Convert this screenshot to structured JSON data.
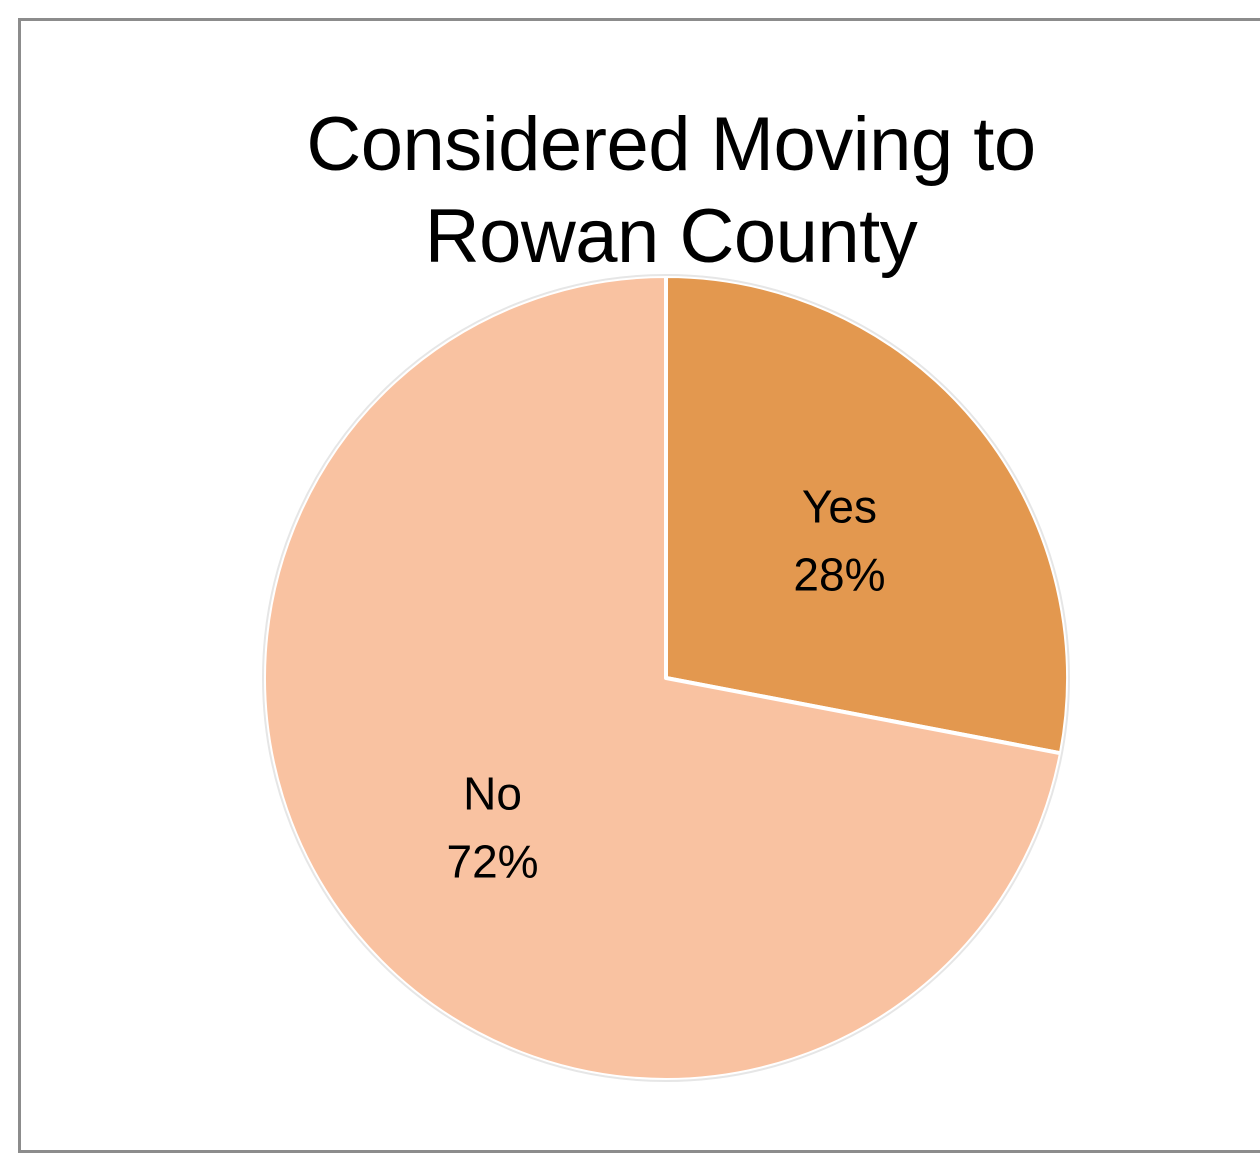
{
  "chart_data": {
    "type": "pie",
    "title_lines": [
      "Considered Moving to",
      "Rowan County"
    ],
    "slices": [
      {
        "label": "Yes",
        "value": 28,
        "value_label": "28%",
        "color": "#E3984F"
      },
      {
        "label": "No",
        "value": 72,
        "value_label": "72%",
        "color": "#F9C2A1"
      }
    ],
    "start_angle_deg": 0,
    "direction": "clockwise",
    "slice_border_color": "#FFFFFF",
    "frame_border_color": "#8C8C8C",
    "legend": "none"
  }
}
